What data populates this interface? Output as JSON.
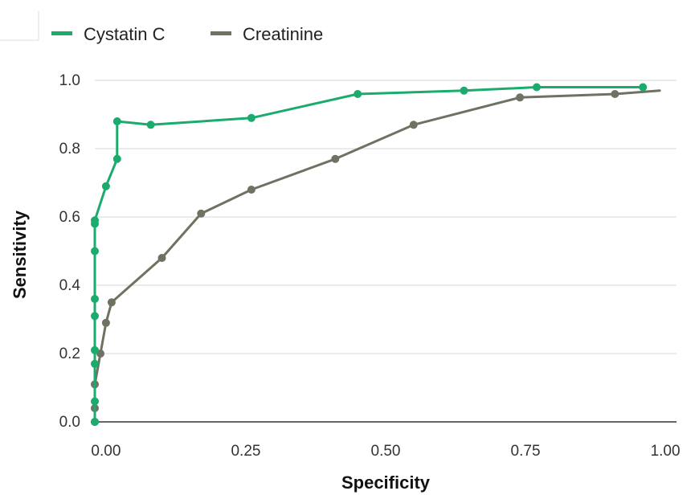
{
  "chart_data": {
    "type": "line",
    "title": "",
    "xlabel": "Specificity",
    "ylabel": "Sensitivity",
    "xlim": [
      -0.02,
      1.02
    ],
    "ylim": [
      0.0,
      1.0
    ],
    "x_ticks": [
      0.0,
      0.25,
      0.5,
      0.75,
      1.0
    ],
    "x_tick_labels": [
      "0.00",
      "0.25",
      "0.50",
      "0.75",
      "1.00"
    ],
    "y_ticks": [
      0.0,
      0.2,
      0.4,
      0.6,
      0.8,
      1.0
    ],
    "y_tick_labels": [
      "0.0",
      "0.2",
      "0.4",
      "0.6",
      "0.8",
      "1.0"
    ],
    "grid": "horizontal",
    "legend_position": "top-left",
    "series": [
      {
        "name": "Cystatin C",
        "color": "#1aab6d",
        "x": [
          -0.02,
          -0.02,
          -0.02,
          -0.02,
          -0.02,
          -0.02,
          -0.02,
          -0.02,
          -0.02,
          0.0,
          0.02,
          0.02,
          0.08,
          0.26,
          0.45,
          0.64,
          0.77,
          0.96
        ],
        "y": [
          0.0,
          0.06,
          0.17,
          0.21,
          0.31,
          0.36,
          0.5,
          0.58,
          0.59,
          0.69,
          0.77,
          0.88,
          0.87,
          0.89,
          0.96,
          0.97,
          0.98,
          0.98
        ]
      },
      {
        "name": "Creatinine",
        "color": "#6f7162",
        "x": [
          -0.02,
          -0.02,
          -0.02,
          -0.01,
          0.0,
          0.01,
          0.1,
          0.17,
          0.26,
          0.41,
          0.55,
          0.74,
          0.91,
          0.99
        ],
        "y": [
          0.0,
          0.04,
          0.11,
          0.2,
          0.29,
          0.35,
          0.48,
          0.61,
          0.68,
          0.77,
          0.87,
          0.95,
          0.96,
          0.97
        ],
        "markers_until_index": 12
      }
    ]
  }
}
